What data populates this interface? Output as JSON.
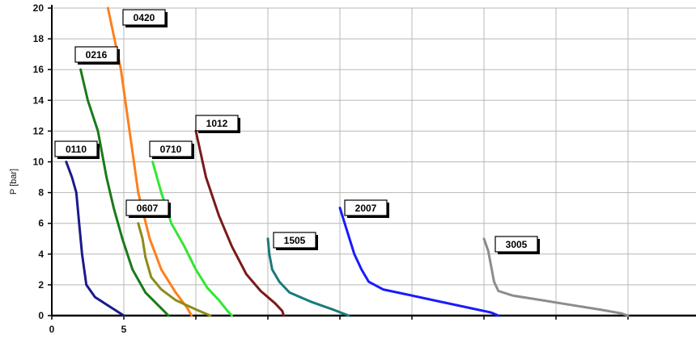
{
  "chart_data": {
    "type": "line",
    "title": "",
    "xlabel": "",
    "ylabel": "P [bar]",
    "ylim": [
      0,
      20
    ],
    "xlim": [
      0,
      45
    ],
    "y_ticks": [
      "0",
      "2",
      "4",
      "6",
      "8",
      "10",
      "12",
      "14",
      "16",
      "18",
      "20"
    ],
    "x_ticks": [
      "0",
      "5"
    ],
    "grid": true,
    "legend": "none",
    "series": [
      {
        "name": "0110",
        "color": "#1a1a8c",
        "points": [
          [
            1.0,
            10
          ],
          [
            1.4,
            9
          ],
          [
            1.7,
            8
          ],
          [
            1.9,
            6
          ],
          [
            2.1,
            4
          ],
          [
            2.4,
            2
          ],
          [
            3.0,
            1.2
          ],
          [
            4.0,
            0.6
          ],
          [
            5.0,
            0
          ]
        ]
      },
      {
        "name": "0216",
        "color": "#1a7a1a",
        "points": [
          [
            2.0,
            16
          ],
          [
            2.5,
            14
          ],
          [
            3.2,
            12
          ],
          [
            3.8,
            9
          ],
          [
            4.3,
            7
          ],
          [
            4.9,
            5
          ],
          [
            5.6,
            3
          ],
          [
            6.5,
            1.5
          ],
          [
            8.1,
            0
          ]
        ]
      },
      {
        "name": "0420",
        "color": "#ff7f1a",
        "points": [
          [
            3.9,
            20
          ],
          [
            4.8,
            16
          ],
          [
            5.4,
            12
          ],
          [
            6.0,
            8
          ],
          [
            6.8,
            5
          ],
          [
            7.6,
            3
          ],
          [
            8.6,
            1.5
          ],
          [
            9.4,
            0.5
          ],
          [
            9.7,
            0
          ]
        ]
      },
      {
        "name": "0607",
        "color": "#8c8c1a",
        "points": [
          [
            6.0,
            6
          ],
          [
            6.3,
            5
          ],
          [
            6.5,
            3.8
          ],
          [
            6.9,
            2.5
          ],
          [
            7.6,
            1.7
          ],
          [
            8.6,
            1.0
          ],
          [
            10.0,
            0.4
          ],
          [
            11.0,
            0
          ]
        ]
      },
      {
        "name": "0710",
        "color": "#33e633",
        "points": [
          [
            7.0,
            10
          ],
          [
            7.6,
            8
          ],
          [
            8.3,
            6
          ],
          [
            9.2,
            4.5
          ],
          [
            10.0,
            3
          ],
          [
            10.8,
            1.8
          ],
          [
            11.6,
            1.0
          ],
          [
            12.2,
            0.3
          ],
          [
            12.5,
            0
          ]
        ]
      },
      {
        "name": "1012",
        "color": "#7a1a1a",
        "points": [
          [
            10.0,
            12
          ],
          [
            10.7,
            9
          ],
          [
            11.6,
            6.5
          ],
          [
            12.5,
            4.5
          ],
          [
            13.5,
            2.7
          ],
          [
            14.5,
            1.6
          ],
          [
            15.5,
            0.8
          ],
          [
            16.0,
            0.3
          ],
          [
            16.1,
            0
          ]
        ]
      },
      {
        "name": "1505",
        "color": "#1a7a7a",
        "points": [
          [
            15.0,
            5
          ],
          [
            15.1,
            4
          ],
          [
            15.3,
            3
          ],
          [
            15.8,
            2.2
          ],
          [
            16.5,
            1.5
          ],
          [
            18.0,
            0.9
          ],
          [
            19.5,
            0.4
          ],
          [
            20.6,
            0
          ]
        ]
      },
      {
        "name": "2007",
        "color": "#1a1aff",
        "points": [
          [
            20.0,
            7
          ],
          [
            20.5,
            5.5
          ],
          [
            21.0,
            4
          ],
          [
            21.5,
            3
          ],
          [
            22.0,
            2.2
          ],
          [
            23.0,
            1.7
          ],
          [
            25.0,
            1.3
          ],
          [
            27.0,
            0.9
          ],
          [
            29.0,
            0.5
          ],
          [
            30.5,
            0.2
          ],
          [
            31.0,
            0
          ]
        ]
      },
      {
        "name": "3005",
        "color": "#8c8c8c",
        "points": [
          [
            30.0,
            5
          ],
          [
            30.3,
            4.2
          ],
          [
            30.5,
            3.2
          ],
          [
            30.7,
            2.2
          ],
          [
            31.0,
            1.6
          ],
          [
            32.0,
            1.3
          ],
          [
            34.0,
            1.0
          ],
          [
            36.0,
            0.7
          ],
          [
            38.0,
            0.4
          ],
          [
            39.5,
            0.15
          ],
          [
            40.0,
            0
          ]
        ]
      }
    ]
  }
}
